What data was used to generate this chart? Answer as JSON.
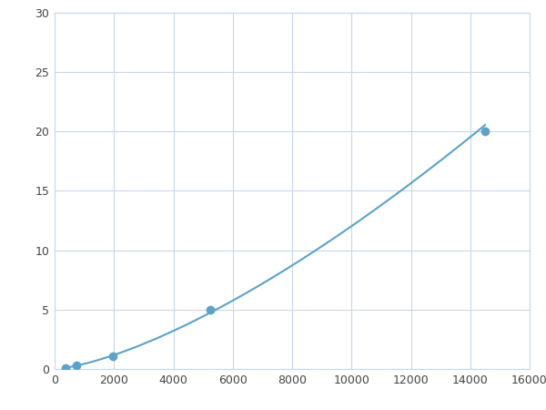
{
  "x_points": [
    370,
    740,
    1975,
    5250,
    14500
  ],
  "y_points": [
    0.1,
    0.3,
    1.1,
    5.0,
    20.0
  ],
  "line_color": "#5ba3c9",
  "marker_color": "#5ba3c9",
  "marker_size": 7,
  "linewidth": 1.5,
  "xlim": [
    0,
    16000
  ],
  "ylim": [
    0,
    30
  ],
  "xticks": [
    0,
    2000,
    4000,
    6000,
    8000,
    10000,
    12000,
    14000,
    16000
  ],
  "yticks": [
    0,
    5,
    10,
    15,
    20,
    25,
    30
  ],
  "grid_color": "#c8d8e8",
  "background_color": "#ffffff",
  "fig_width": 6.0,
  "fig_height": 4.5,
  "dpi": 100
}
